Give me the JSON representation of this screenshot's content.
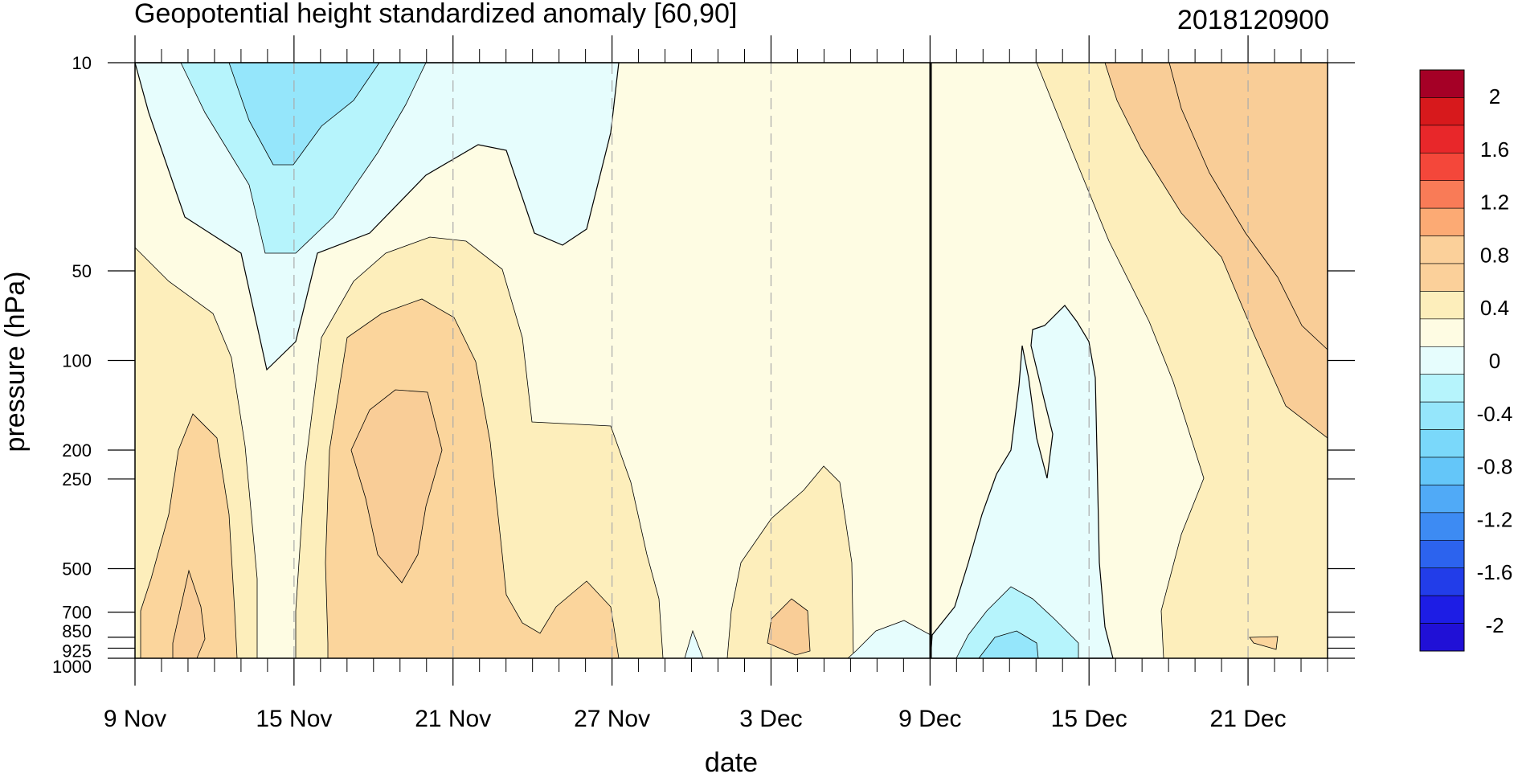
{
  "chart_data": {
    "type": "heatmap",
    "title": "Geopotential height standardized anomaly [60,90]",
    "timestamp": "2018120900",
    "xlabel": "date",
    "ylabel": "pressure (hPa)",
    "x_ticks": [
      "9 Nov",
      "15 Nov",
      "21 Nov",
      "27 Nov",
      "3 Dec",
      "9 Dec",
      "15 Dec",
      "21 Dec"
    ],
    "x_range_days": [
      0,
      45
    ],
    "y_ticks": [
      "10",
      "50",
      "100",
      "200",
      "250",
      "500",
      "700",
      "850",
      "925",
      "1000"
    ],
    "y_range_hPa": [
      10,
      1000
    ],
    "y_scale": "log",
    "marker_date": "9 Dec",
    "colorbar": {
      "labels": [
        "2",
        "1.6",
        "1.2",
        "0.8",
        "0.4",
        "0",
        "-0.4",
        "-0.8",
        "-1.2",
        "-1.6",
        "-2"
      ],
      "colors": [
        "#a50026",
        "#d7191c",
        "#e8272a",
        "#f4473a",
        "#f97b57",
        "#fcaa74",
        "#fbd09a",
        "#fbd09a",
        "#fdeebb",
        "#fefce3",
        "#e6fdfd",
        "#b6f4fc",
        "#95e6fb",
        "#7ad8fa",
        "#64c6f9",
        "#50aaf7",
        "#3d8bf3",
        "#2c63ee",
        "#223de9",
        "#1d1de5",
        "#2010d6"
      ]
    },
    "level_colors": {
      "pos_high": "#f9cd97",
      "pos_mid": "#fbd59c",
      "pos_low": "#fdeebb",
      "neutral": "#fefce3",
      "neg_low": "#e6fdfd",
      "neg_mid": "#b6f4fc",
      "neg_high": "#95e6fb"
    },
    "regions": [
      {
        "level": "neg_low",
        "days": [
          0,
          12
        ],
        "p": [
          10,
          22
        ]
      },
      {
        "level": "neg_mid",
        "days": [
          2,
          10
        ],
        "p": [
          10,
          45
        ]
      },
      {
        "level": "neg_high",
        "days": [
          5,
          9
        ],
        "p": [
          10,
          20
        ]
      },
      {
        "level": "pos_low",
        "days": [
          0,
          22
        ],
        "p": [
          40,
          1000
        ]
      },
      {
        "level": "pos_mid",
        "days": [
          7,
          16
        ],
        "p": [
          60,
          1000
        ]
      },
      {
        "level": "pos_high",
        "days": [
          8,
          12
        ],
        "p": [
          140,
          400
        ]
      },
      {
        "level": "neg_low",
        "days": [
          30,
          37
        ],
        "p": [
          90,
          1000
        ]
      },
      {
        "level": "neg_mid",
        "days": [
          31,
          35
        ],
        "p": [
          600,
          1000
        ]
      },
      {
        "level": "pos_low",
        "days": [
          34,
          45
        ],
        "p": [
          10,
          1000
        ]
      },
      {
        "level": "pos_mid",
        "days": [
          37,
          45
        ],
        "p": [
          10,
          180
        ]
      }
    ]
  }
}
